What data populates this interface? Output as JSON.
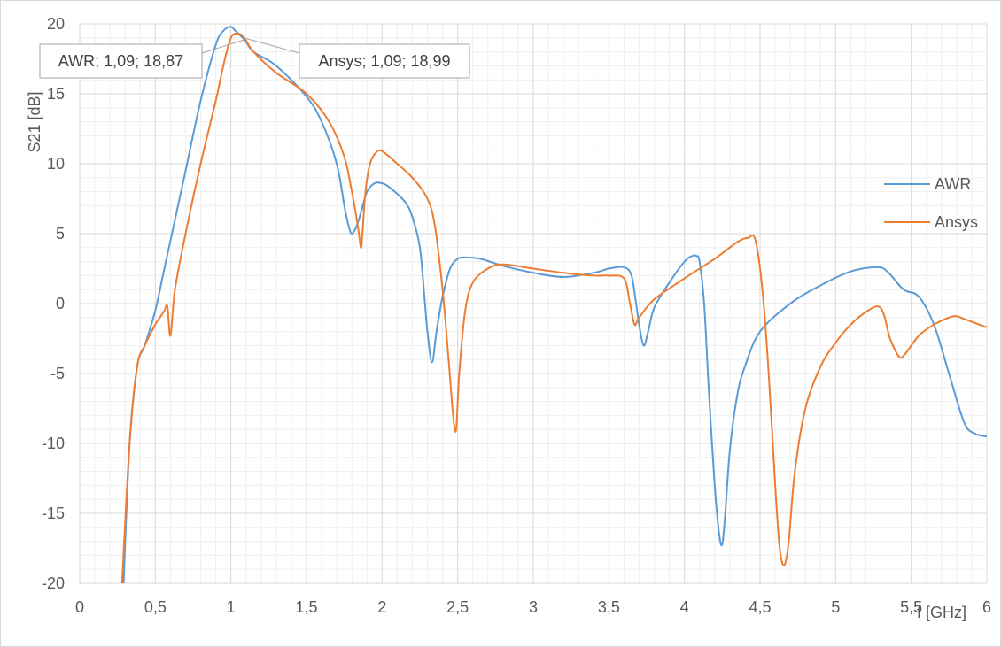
{
  "chart_data": {
    "type": "line",
    "title": "",
    "xlabel": "f [GHz]",
    "ylabel": "S21 [dB]",
    "xlim": [
      0,
      6
    ],
    "ylim": [
      -20,
      20
    ],
    "x_ticks": [
      "0",
      "0,5",
      "1",
      "1,5",
      "2",
      "2,5",
      "3",
      "3,5",
      "4",
      "4,5",
      "5",
      "5,5",
      "6"
    ],
    "y_ticks": [
      "-20",
      "-15",
      "-10",
      "-5",
      "0",
      "5",
      "10",
      "15",
      "20"
    ],
    "grid": true,
    "legend_position": "right",
    "series": [
      {
        "name": "AWR",
        "color": "#5b9bd5",
        "x": [
          0.29,
          0.33,
          0.38,
          0.43,
          0.5,
          0.55,
          0.6,
          0.7,
          0.8,
          0.9,
          0.95,
          1.0,
          1.03,
          1.09,
          1.15,
          1.3,
          1.5,
          1.6,
          1.7,
          1.75,
          1.78,
          1.8,
          1.83,
          1.86,
          1.9,
          1.95,
          2.0,
          2.05,
          2.15,
          2.2,
          2.25,
          2.28,
          2.3,
          2.33,
          2.36,
          2.4,
          2.45,
          2.5,
          2.55,
          2.65,
          2.8,
          3.0,
          3.2,
          3.4,
          3.5,
          3.6,
          3.65,
          3.68,
          3.7,
          3.73,
          3.76,
          3.8,
          3.9,
          4.0,
          4.05,
          4.08,
          4.1,
          4.13,
          4.16,
          4.2,
          4.23,
          4.25,
          4.27,
          4.3,
          4.35,
          4.4,
          4.5,
          4.7,
          4.9,
          5.1,
          5.28,
          5.35,
          5.45,
          5.55,
          5.65,
          5.75,
          5.85,
          5.92,
          6.0
        ],
        "y": [
          -20.0,
          -10.0,
          -4.5,
          -3.0,
          -0.5,
          2.0,
          4.5,
          9.5,
          14.5,
          18.5,
          19.5,
          19.8,
          19.5,
          18.87,
          18.0,
          17.0,
          14.8,
          13.0,
          10.0,
          7.0,
          5.5,
          5.0,
          5.5,
          6.5,
          8.0,
          8.6,
          8.6,
          8.3,
          7.3,
          6.2,
          4.0,
          0.5,
          -2.0,
          -4.2,
          -2.0,
          0.5,
          2.5,
          3.2,
          3.3,
          3.2,
          2.7,
          2.2,
          1.9,
          2.2,
          2.5,
          2.6,
          2.0,
          0.0,
          -1.5,
          -3.0,
          -2.0,
          -0.3,
          1.5,
          3.0,
          3.4,
          3.4,
          3.0,
          0.0,
          -6.0,
          -13.0,
          -16.5,
          -17.2,
          -15.0,
          -10.5,
          -6.5,
          -4.5,
          -2.0,
          0.0,
          1.3,
          2.3,
          2.6,
          2.2,
          1.0,
          0.5,
          -1.5,
          -5.0,
          -8.5,
          -9.3,
          -9.5
        ]
      },
      {
        "name": "Ansys",
        "color": "#ed7d31",
        "x": [
          0.28,
          0.33,
          0.38,
          0.43,
          0.5,
          0.53,
          0.56,
          0.58,
          0.6,
          0.63,
          0.7,
          0.8,
          0.9,
          0.95,
          1.0,
          1.05,
          1.09,
          1.15,
          1.3,
          1.5,
          1.65,
          1.75,
          1.8,
          1.84,
          1.86,
          1.87,
          1.89,
          1.92,
          1.96,
          2.0,
          2.1,
          2.2,
          2.3,
          2.35,
          2.4,
          2.44,
          2.47,
          2.49,
          2.51,
          2.55,
          2.6,
          2.7,
          2.8,
          3.0,
          3.2,
          3.4,
          3.5,
          3.6,
          3.64,
          3.67,
          3.7,
          3.8,
          4.0,
          4.2,
          4.35,
          4.42,
          4.47,
          4.52,
          4.56,
          4.6,
          4.63,
          4.66,
          4.69,
          4.73,
          4.8,
          4.9,
          5.0,
          5.1,
          5.2,
          5.28,
          5.32,
          5.36,
          5.42,
          5.46,
          5.55,
          5.65,
          5.75,
          5.8,
          5.85,
          5.9,
          6.0
        ],
        "y": [
          -20.0,
          -10.0,
          -4.5,
          -3.0,
          -1.5,
          -1.0,
          -0.5,
          -0.2,
          -2.3,
          1.0,
          5.0,
          10.0,
          14.5,
          17.0,
          19.0,
          19.3,
          18.99,
          18.0,
          16.5,
          15.0,
          13.0,
          10.5,
          8.0,
          5.5,
          4.0,
          5.0,
          8.0,
          10.0,
          10.8,
          10.9,
          10.0,
          9.0,
          7.5,
          5.5,
          1.0,
          -4.0,
          -8.0,
          -9.0,
          -5.0,
          -0.5,
          1.5,
          2.5,
          2.8,
          2.5,
          2.2,
          2.0,
          2.0,
          1.8,
          0.0,
          -1.5,
          -1.0,
          0.3,
          1.8,
          3.2,
          4.4,
          4.7,
          4.5,
          0.5,
          -5.5,
          -13.0,
          -17.5,
          -18.7,
          -17.0,
          -12.0,
          -7.5,
          -4.5,
          -2.8,
          -1.5,
          -0.6,
          -0.2,
          -0.8,
          -2.5,
          -3.8,
          -3.6,
          -2.3,
          -1.5,
          -1.0,
          -0.9,
          -1.1,
          -1.3,
          -1.7
        ]
      }
    ],
    "annotations": [
      {
        "text": "AWR; 1,09; 18,87",
        "series": "AWR",
        "x": 1.09,
        "y": 18.87
      },
      {
        "text": "Ansys; 1,09; 18,99",
        "series": "Ansys",
        "x": 1.09,
        "y": 18.99
      }
    ]
  }
}
